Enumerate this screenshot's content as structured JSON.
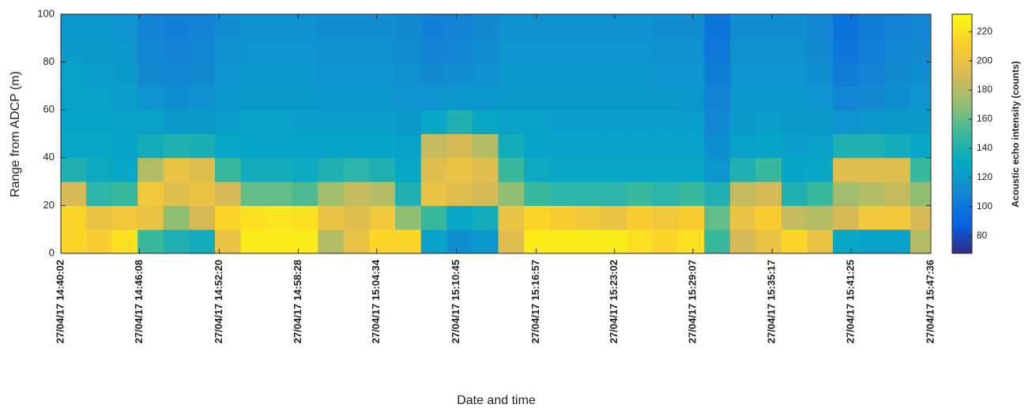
{
  "chart_data": {
    "type": "heatmap",
    "xlabel": "Date and time",
    "ylabel": "Range from ADCP (m)",
    "colorbar_label": "Acoustic echo intensity (counts)",
    "colormap": [
      "#352a87",
      "#0363e1",
      "#1485d4",
      "#06a7c6",
      "#38b99e",
      "#92bf73",
      "#d9ba56",
      "#fcce2e",
      "#f9fb0e"
    ],
    "xlim": [
      "2017-04-27T14:40:02",
      "2017-04-27T15:47:36"
    ],
    "xticks": [
      {
        "value": "2017-04-27T14:40:02",
        "label": "27/04/17 14:40:02"
      },
      {
        "value": "2017-04-27T14:46:08",
        "label": "27/04/17 14:46:08"
      },
      {
        "value": "2017-04-27T14:52:20",
        "label": "27/04/17 14:52:20"
      },
      {
        "value": "2017-04-27T14:58:28",
        "label": "27/04/17 14:58:28"
      },
      {
        "value": "2017-04-27T15:04:34",
        "label": "27/04/17 15:04:34"
      },
      {
        "value": "2017-04-27T15:10:45",
        "label": "27/04/17 15:10:45"
      },
      {
        "value": "2017-04-27T15:16:57",
        "label": "27/04/17 15:16:57"
      },
      {
        "value": "2017-04-27T15:23:02",
        "label": "27/04/17 15:23:02"
      },
      {
        "value": "2017-04-27T15:29:07",
        "label": "27/04/17 15:29:07"
      },
      {
        "value": "2017-04-27T15:35:17",
        "label": "27/04/17 15:35:17"
      },
      {
        "value": "2017-04-27T15:41:25",
        "label": "27/04/17 15:41:25"
      },
      {
        "value": "2017-04-27T15:47:36",
        "label": "27/04/17 15:47:36"
      }
    ],
    "ylim": [
      0,
      100
    ],
    "yticks": [
      0,
      20,
      40,
      60,
      80,
      100
    ],
    "clim": [
      68,
      232
    ],
    "cticks": [
      80,
      100,
      120,
      140,
      160,
      180,
      200,
      220
    ],
    "x": [
      "2017-04-27T14:41:00",
      "2017-04-27T14:43:00",
      "2017-04-27T14:45:00",
      "2017-04-27T14:47:00",
      "2017-04-27T14:49:00",
      "2017-04-27T14:51:00",
      "2017-04-27T14:53:00",
      "2017-04-27T14:55:00",
      "2017-04-27T14:57:00",
      "2017-04-27T14:59:00",
      "2017-04-27T15:01:00",
      "2017-04-27T15:03:00",
      "2017-04-27T15:05:00",
      "2017-04-27T15:07:00",
      "2017-04-27T15:09:00",
      "2017-04-27T15:11:00",
      "2017-04-27T15:13:00",
      "2017-04-27T15:15:00",
      "2017-04-27T15:17:00",
      "2017-04-27T15:19:00",
      "2017-04-27T15:21:00",
      "2017-04-27T15:23:00",
      "2017-04-27T15:25:00",
      "2017-04-27T15:27:00",
      "2017-04-27T15:29:00",
      "2017-04-27T15:31:00",
      "2017-04-27T15:33:00",
      "2017-04-27T15:35:00",
      "2017-04-27T15:37:00",
      "2017-04-27T15:39:00",
      "2017-04-27T15:41:00",
      "2017-04-27T15:43:00",
      "2017-04-27T15:45:00",
      "2017-04-27T15:47:00"
    ],
    "y": [
      5,
      15,
      25,
      35,
      45,
      55,
      65,
      75,
      85,
      95
    ],
    "values": [
      [
        215,
        210,
        220,
        150,
        140,
        135,
        200,
        225,
        225,
        225,
        180,
        200,
        215,
        215,
        125,
        115,
        120,
        195,
        225,
        225,
        225,
        225,
        220,
        215,
        220,
        150,
        190,
        200,
        215,
        200,
        130,
        125,
        125,
        180
      ],
      [
        215,
        200,
        205,
        200,
        170,
        190,
        215,
        220,
        222,
        220,
        200,
        195,
        205,
        170,
        150,
        130,
        135,
        200,
        215,
        210,
        205,
        200,
        210,
        205,
        210,
        160,
        200,
        210,
        185,
        180,
        190,
        205,
        205,
        190
      ],
      [
        190,
        145,
        150,
        205,
        195,
        200,
        190,
        160,
        160,
        155,
        175,
        185,
        180,
        140,
        200,
        195,
        190,
        170,
        150,
        145,
        145,
        145,
        150,
        145,
        150,
        140,
        185,
        190,
        140,
        150,
        175,
        180,
        185,
        170
      ],
      [
        140,
        132,
        130,
        180,
        200,
        195,
        150,
        135,
        135,
        132,
        140,
        145,
        140,
        130,
        195,
        200,
        195,
        150,
        132,
        130,
        130,
        130,
        130,
        130,
        130,
        120,
        140,
        150,
        128,
        130,
        195,
        195,
        195,
        150
      ],
      [
        130,
        130,
        128,
        135,
        140,
        138,
        130,
        128,
        128,
        128,
        128,
        128,
        128,
        126,
        185,
        190,
        180,
        135,
        128,
        126,
        126,
        126,
        126,
        126,
        126,
        115,
        125,
        128,
        124,
        125,
        140,
        140,
        135,
        130
      ],
      [
        128,
        128,
        126,
        125,
        122,
        122,
        124,
        125,
        125,
        124,
        124,
        124,
        124,
        122,
        130,
        140,
        130,
        125,
        125,
        124,
        124,
        124,
        124,
        124,
        124,
        110,
        122,
        124,
        122,
        122,
        118,
        120,
        122,
        122
      ],
      [
        125,
        125,
        124,
        118,
        115,
        116,
        120,
        122,
        122,
        122,
        120,
        120,
        120,
        118,
        118,
        120,
        120,
        122,
        122,
        122,
        122,
        122,
        122,
        122,
        120,
        108,
        120,
        120,
        120,
        118,
        110,
        112,
        115,
        118
      ],
      [
        125,
        124,
        122,
        112,
        110,
        112,
        118,
        120,
        120,
        120,
        118,
        118,
        118,
        116,
        112,
        114,
        116,
        120,
        120,
        120,
        120,
        120,
        120,
        118,
        118,
        104,
        118,
        118,
        118,
        115,
        104,
        108,
        112,
        115
      ],
      [
        122,
        122,
        120,
        110,
        108,
        110,
        116,
        118,
        118,
        118,
        116,
        116,
        116,
        114,
        108,
        110,
        114,
        118,
        118,
        118,
        118,
        118,
        118,
        116,
        116,
        102,
        116,
        116,
        116,
        112,
        100,
        106,
        110,
        112
      ],
      [
        120,
        120,
        118,
        108,
        106,
        108,
        114,
        116,
        116,
        116,
        114,
        114,
        114,
        112,
        106,
        108,
        112,
        116,
        116,
        116,
        116,
        116,
        116,
        114,
        114,
        100,
        114,
        114,
        114,
        110,
        98,
        104,
        108,
        110
      ]
    ]
  }
}
